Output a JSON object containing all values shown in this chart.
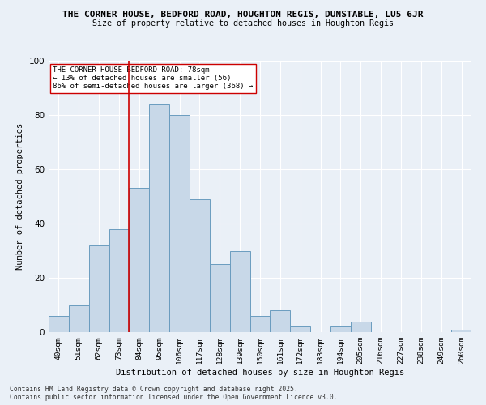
{
  "title1": "THE CORNER HOUSE, BEDFORD ROAD, HOUGHTON REGIS, DUNSTABLE, LU5 6JR",
  "title2": "Size of property relative to detached houses in Houghton Regis",
  "xlabel": "Distribution of detached houses by size in Houghton Regis",
  "ylabel": "Number of detached properties",
  "categories": [
    "40sqm",
    "51sqm",
    "62sqm",
    "73sqm",
    "84sqm",
    "95sqm",
    "106sqm",
    "117sqm",
    "128sqm",
    "139sqm",
    "150sqm",
    "161sqm",
    "172sqm",
    "183sqm",
    "194sqm",
    "205sqm",
    "216sqm",
    "227sqm",
    "238sqm",
    "249sqm",
    "260sqm"
  ],
  "values": [
    6,
    10,
    32,
    38,
    53,
    84,
    80,
    49,
    25,
    30,
    6,
    8,
    2,
    0,
    2,
    4,
    0,
    0,
    0,
    0,
    1
  ],
  "bar_color": "#c8d8e8",
  "bar_edge_color": "#6a9cbf",
  "vline_x": 3.5,
  "vline_color": "#cc0000",
  "annotation_text": "THE CORNER HOUSE BEDFORD ROAD: 78sqm\n← 13% of detached houses are smaller (56)\n86% of semi-detached houses are larger (368) →",
  "annotation_box_color": "#ffffff",
  "annotation_box_edge_color": "#cc0000",
  "ylim": [
    0,
    100
  ],
  "yticks": [
    0,
    20,
    40,
    60,
    80,
    100
  ],
  "footer1": "Contains HM Land Registry data © Crown copyright and database right 2025.",
  "footer2": "Contains public sector information licensed under the Open Government Licence v3.0.",
  "background_color": "#eaf0f7",
  "plot_background_color": "#eaf0f7",
  "grid_color": "#ffffff"
}
